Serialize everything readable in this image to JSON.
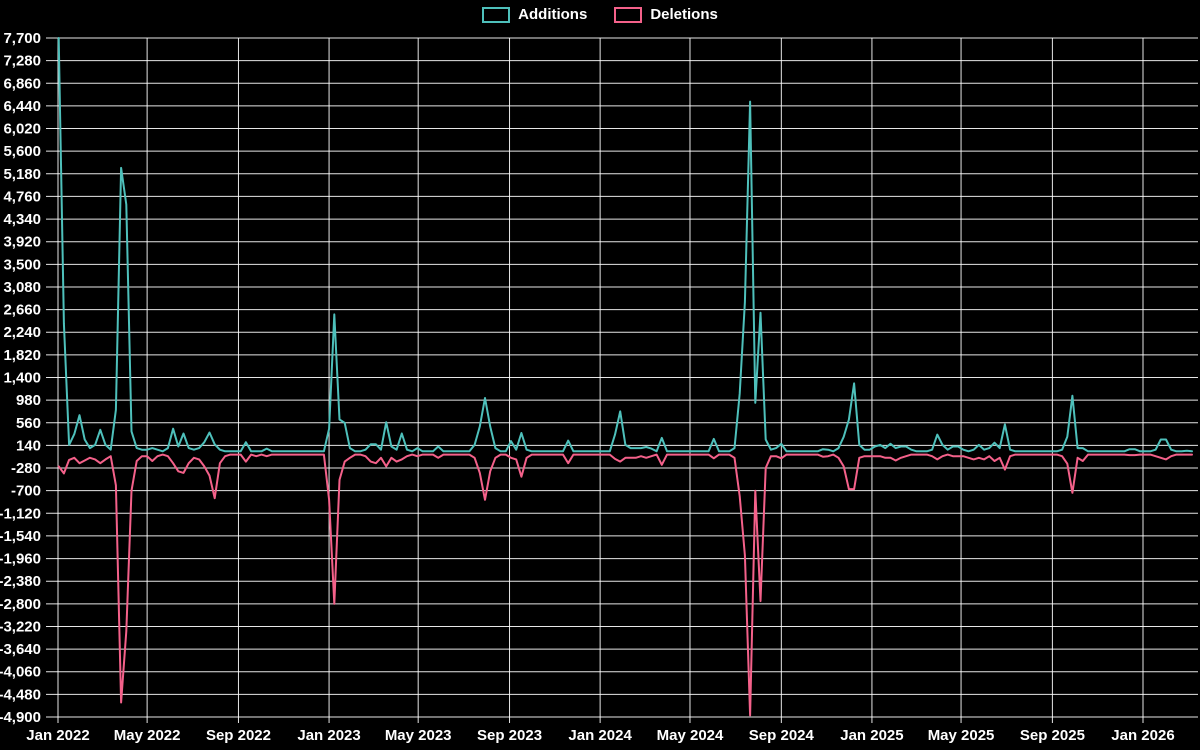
{
  "chart_data": {
    "type": "line",
    "title": "",
    "legend_position": "top-center",
    "background_color": "#000000",
    "grid_color": "#ffffff",
    "text_color": "#ffffff",
    "y_axis": {
      "max": 7700,
      "min": -4900,
      "tick_step": 420,
      "tick_labels": [
        "7,700",
        "7,280",
        "6,860",
        "6,440",
        "6,020",
        "5,600",
        "5,180",
        "4,760",
        "4,340",
        "3,920",
        "3,500",
        "3,080",
        "2,660",
        "2,240",
        "1,820",
        "1,400",
        "980",
        "560",
        "140",
        "-280",
        "-700",
        "-1,120",
        "-1,540",
        "-1,960",
        "-2,380",
        "-2,800",
        "-3,220",
        "-3,640",
        "-4,060",
        "-4,480",
        "-4,900"
      ]
    },
    "x_axis": {
      "ticks": [
        {
          "label": "Jan 2022",
          "day": 0
        },
        {
          "label": "May 2022",
          "day": 120
        },
        {
          "label": "Sep 2022",
          "day": 243
        },
        {
          "label": "Jan 2023",
          "day": 365
        },
        {
          "label": "May 2023",
          "day": 485
        },
        {
          "label": "Sep 2023",
          "day": 608
        },
        {
          "label": "Jan 2024",
          "day": 730
        },
        {
          "label": "May 2024",
          "day": 851
        },
        {
          "label": "Sep 2024",
          "day": 974
        },
        {
          "label": "Jan 2025",
          "day": 1096
        },
        {
          "label": "May 2025",
          "day": 1216
        },
        {
          "label": "Sep 2025",
          "day": 1339
        },
        {
          "label": "Jan 2026",
          "day": 1461
        }
      ]
    },
    "x_start_date": "2022-01-02",
    "x_interval_days": 7,
    "series": [
      {
        "name": "Additions",
        "color": "#4ec0bb",
        "values": [
          7700,
          2400,
          150,
          350,
          700,
          250,
          90,
          150,
          430,
          150,
          60,
          800,
          5290,
          4610,
          400,
          90,
          60,
          60,
          90,
          60,
          30,
          90,
          450,
          120,
          360,
          90,
          60,
          90,
          200,
          380,
          160,
          60,
          30,
          30,
          30,
          30,
          200,
          30,
          30,
          30,
          80,
          30,
          30,
          30,
          30,
          30,
          30,
          30,
          30,
          30,
          30,
          30,
          450,
          2570,
          620,
          560,
          90,
          30,
          30,
          60,
          160,
          160,
          60,
          570,
          120,
          60,
          360,
          60,
          30,
          90,
          30,
          30,
          30,
          120,
          30,
          30,
          30,
          30,
          30,
          30,
          150,
          490,
          1020,
          490,
          90,
          30,
          30,
          220,
          60,
          370,
          60,
          30,
          30,
          30,
          30,
          30,
          30,
          30,
          230,
          30,
          30,
          30,
          30,
          30,
          30,
          30,
          30,
          340,
          770,
          150,
          90,
          90,
          90,
          110,
          80,
          30,
          280,
          30,
          30,
          30,
          30,
          30,
          30,
          30,
          30,
          30,
          260,
          30,
          30,
          30,
          90,
          1100,
          2800,
          6520,
          930,
          2600,
          250,
          60,
          90,
          170,
          30,
          30,
          30,
          30,
          30,
          30,
          30,
          70,
          60,
          30,
          90,
          300,
          620,
          1290,
          150,
          60,
          60,
          120,
          150,
          90,
          170,
          90,
          120,
          120,
          60,
          30,
          30,
          30,
          60,
          340,
          150,
          60,
          120,
          120,
          60,
          30,
          60,
          150,
          60,
          90,
          190,
          90,
          530,
          60,
          30,
          30,
          30,
          30,
          30,
          30,
          30,
          30,
          30,
          60,
          300,
          1060,
          90,
          90,
          30,
          30,
          30,
          30,
          30,
          30,
          30,
          30,
          70,
          70,
          30,
          30,
          30,
          60,
          250,
          250,
          60,
          30,
          30,
          40,
          30
        ]
      },
      {
        "name": "Deletions",
        "color": "#f4618a",
        "values": [
          -250,
          -380,
          -130,
          -90,
          -190,
          -140,
          -90,
          -120,
          -190,
          -120,
          -60,
          -600,
          -4630,
          -3310,
          -700,
          -150,
          -60,
          -60,
          -150,
          -60,
          -30,
          -60,
          -190,
          -340,
          -370,
          -190,
          -90,
          -120,
          -250,
          -420,
          -840,
          -190,
          -60,
          -30,
          -30,
          -30,
          -160,
          -30,
          -60,
          -30,
          -60,
          -30,
          -30,
          -30,
          -30,
          -30,
          -30,
          -30,
          -30,
          -30,
          -30,
          -30,
          -870,
          -2800,
          -500,
          -160,
          -90,
          -30,
          -30,
          -60,
          -160,
          -190,
          -90,
          -250,
          -90,
          -160,
          -120,
          -60,
          -30,
          -60,
          -30,
          -30,
          -30,
          -90,
          -30,
          -30,
          -30,
          -30,
          -30,
          -30,
          -90,
          -370,
          -870,
          -340,
          -90,
          -30,
          -30,
          -90,
          -120,
          -440,
          -90,
          -30,
          -30,
          -30,
          -30,
          -30,
          -30,
          -30,
          -190,
          -30,
          -30,
          -30,
          -30,
          -30,
          -30,
          -30,
          -30,
          -110,
          -160,
          -90,
          -90,
          -90,
          -60,
          -90,
          -60,
          -30,
          -220,
          -30,
          -30,
          -30,
          -30,
          -30,
          -30,
          -30,
          -30,
          -30,
          -100,
          -30,
          -30,
          -30,
          -90,
          -800,
          -1900,
          -4870,
          -700,
          -2750,
          -280,
          -60,
          -60,
          -100,
          -30,
          -30,
          -30,
          -30,
          -30,
          -30,
          -30,
          -70,
          -60,
          -30,
          -90,
          -250,
          -670,
          -670,
          -90,
          -60,
          -60,
          -60,
          -60,
          -90,
          -90,
          -140,
          -90,
          -60,
          -30,
          -30,
          -30,
          -30,
          -60,
          -120,
          -60,
          -30,
          -60,
          -60,
          -60,
          -90,
          -120,
          -90,
          -120,
          -60,
          -150,
          -90,
          -310,
          -60,
          -30,
          -30,
          -30,
          -30,
          -30,
          -30,
          -30,
          -30,
          -30,
          -60,
          -200,
          -740,
          -90,
          -150,
          -30,
          -30,
          -30,
          -30,
          -30,
          -30,
          -30,
          -30,
          -40,
          -40,
          -30,
          -30,
          -30,
          -60,
          -90,
          -120,
          -60,
          -30,
          -30,
          -30,
          -30
        ]
      }
    ]
  }
}
